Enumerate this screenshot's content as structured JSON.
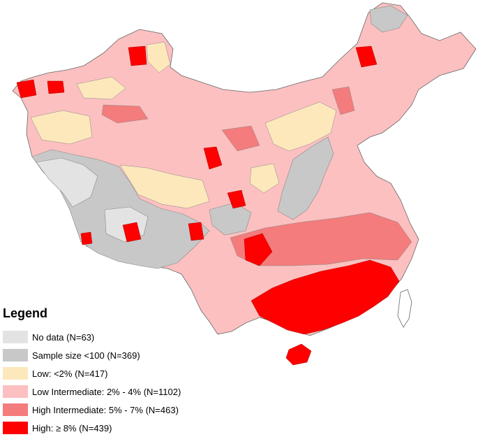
{
  "legend": {
    "title": "Legend",
    "items": [
      {
        "label": "No data (N=63)",
        "color": "#e3e3e3"
      },
      {
        "label": "Sample size <100 (N=369)",
        "color": "#c8c8c8"
      },
      {
        "label": "Low: <2% (N=417)",
        "color": "#fde8bc"
      },
      {
        "label": "Low Intermediate: 2% - 4% (N=1102)",
        "color": "#fcc0c0"
      },
      {
        "label": "High Intermediate: 5% - 7% (N=463)",
        "color": "#f47c7c"
      },
      {
        "label": "High: ≥ 8% (N=439)",
        "color": "#ff0000"
      }
    ]
  }
}
